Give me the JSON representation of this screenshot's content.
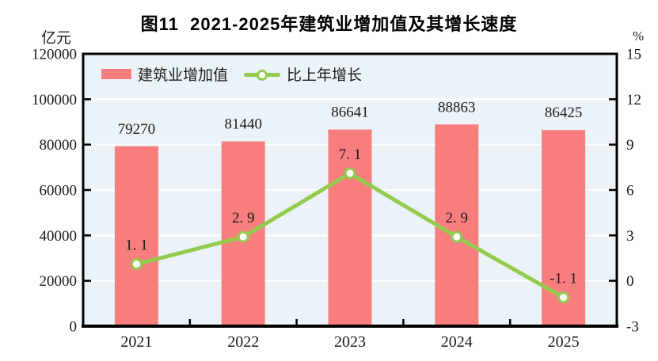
{
  "title": "图11  2021-2025年建筑业增加值及其增长速度",
  "left_axis_unit": "亿元",
  "right_axis_unit": "%",
  "legend": {
    "bar_label": "建筑业增加值",
    "line_label": "比上年增长"
  },
  "chart_data": {
    "type": "bar",
    "subtype": "bar-line-combo",
    "title": "图11  2021-2025年建筑业增加值及其增长速度",
    "categories": [
      "2021",
      "2022",
      "2023",
      "2024",
      "2025"
    ],
    "series": [
      {
        "name": "建筑业增加值",
        "type": "bar",
        "axis": "left",
        "values": [
          79270,
          81440,
          86641,
          88863,
          86425
        ],
        "labels": [
          "79270",
          "81440",
          "86641",
          "88863",
          "86425"
        ],
        "color": "#f87e7e"
      },
      {
        "name": "比上年增长",
        "type": "line",
        "axis": "right",
        "values": [
          1.1,
          2.9,
          7.1,
          2.9,
          -1.1
        ],
        "labels": [
          "1. 1",
          "2. 9",
          "7. 1",
          "2. 9",
          "-1. 1"
        ],
        "color": "#94cb4f",
        "marker": "circle",
        "marker_fill": "#ffffff"
      }
    ],
    "left_axis": {
      "unit": "亿元",
      "min": 0,
      "max": 120000,
      "step": 20000,
      "tick_labels": [
        "120000",
        "100000",
        "80000",
        "60000",
        "40000",
        "20000",
        "0"
      ]
    },
    "right_axis": {
      "unit": "%",
      "min": -3,
      "max": 15,
      "step": 3,
      "tick_labels": [
        "15",
        "12",
        "9",
        "6",
        "3",
        "0",
        "-3"
      ]
    },
    "grid": "horizontal-white",
    "legend_position": "top-left-inside",
    "plot_bg": "#ebf2f8",
    "grid_color": "#ffffff",
    "axis_color": "#000000",
    "label_color": "#1a1a1a"
  }
}
